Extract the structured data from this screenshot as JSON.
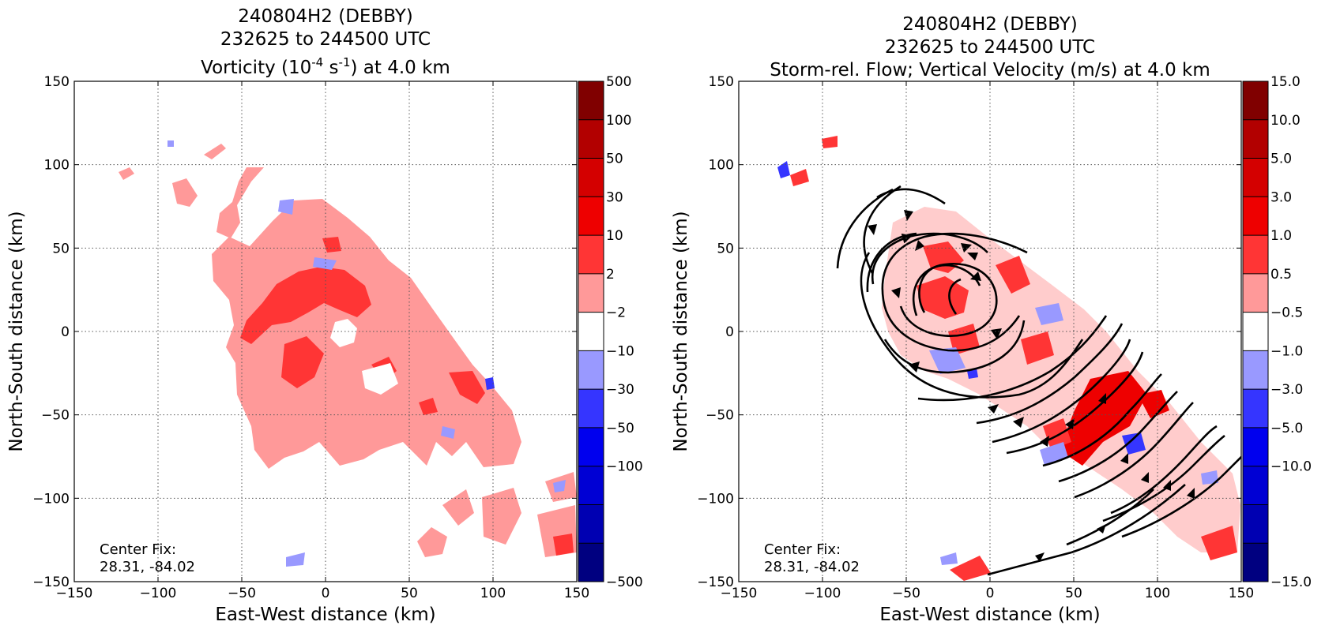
{
  "chart_data": [
    {
      "type": "heatmap",
      "title_lines": [
        "240804H2 (DEBBY)",
        "232625 to 244500 UTC"
      ],
      "title_field": {
        "pre": "Vorticity (10",
        "sup1": "-4",
        "mid": " s",
        "sup2": "-1",
        "post": ") at 4.0 km"
      },
      "xlabel": "East-West distance (km)",
      "ylabel": "North-South distance (km)",
      "xlim": [
        -150,
        150
      ],
      "ylim": [
        -150,
        150
      ],
      "xticks": [
        -150,
        -100,
        -50,
        0,
        50,
        100,
        150
      ],
      "yticks": [
        -150,
        -100,
        -50,
        0,
        50,
        100,
        150
      ],
      "xtick_labels": [
        "−150",
        "−100",
        "−50",
        "0",
        "50",
        "100",
        "150"
      ],
      "ytick_labels": [
        "−150",
        "−100",
        "−50",
        "0",
        "50",
        "100",
        "150"
      ],
      "grid": true,
      "colorbar": {
        "labels": [
          "500",
          "100",
          "50",
          "30",
          "10",
          "2",
          "−2",
          "−10",
          "−30",
          "−50",
          "−100",
          "−500"
        ],
        "colors": [
          "#800000",
          "#b20000",
          "#d40000",
          "#ee0000",
          "#ff3535",
          "#ff9999",
          "#ffffff",
          "#9999ff",
          "#3535ff",
          "#0000ee",
          "#0000d4",
          "#0000b2",
          "#000080"
        ]
      },
      "center_fix": {
        "label": "Center Fix:",
        "value": "28.31, -84.02"
      }
    },
    {
      "type": "heatmap",
      "title_lines": [
        "240804H2 (DEBBY)",
        "232625 to 244500 UTC",
        "Storm-rel. Flow; Vertical Velocity (m/s) at 4.0 km"
      ],
      "xlabel": "East-West distance (km)",
      "ylabel": "North-South distance (km)",
      "xlim": [
        -150,
        150
      ],
      "ylim": [
        -150,
        150
      ],
      "xticks": [
        -150,
        -100,
        -50,
        0,
        50,
        100,
        150
      ],
      "yticks": [
        -150,
        -100,
        -50,
        0,
        50,
        100,
        150
      ],
      "xtick_labels": [
        "−150",
        "−100",
        "−50",
        "0",
        "50",
        "100",
        "150"
      ],
      "ytick_labels": [
        "−150",
        "−100",
        "−50",
        "0",
        "50",
        "100",
        "150"
      ],
      "grid": true,
      "colorbar": {
        "labels": [
          "15.0",
          "10.0",
          "5.0",
          "3.0",
          "1.0",
          "0.5",
          "−0.5",
          "−1.0",
          "−3.0",
          "−5.0",
          "−10.0",
          "−15.0"
        ],
        "colors": [
          "#800000",
          "#b20000",
          "#d40000",
          "#ee0000",
          "#ff3535",
          "#ff9999",
          "#ffffff",
          "#9999ff",
          "#3535ff",
          "#0000ee",
          "#0000d4",
          "#0000b2",
          "#000080"
        ]
      },
      "center_fix": {
        "label": "Center Fix:",
        "value": "28.31, -84.02"
      },
      "streamlines": true
    }
  ]
}
